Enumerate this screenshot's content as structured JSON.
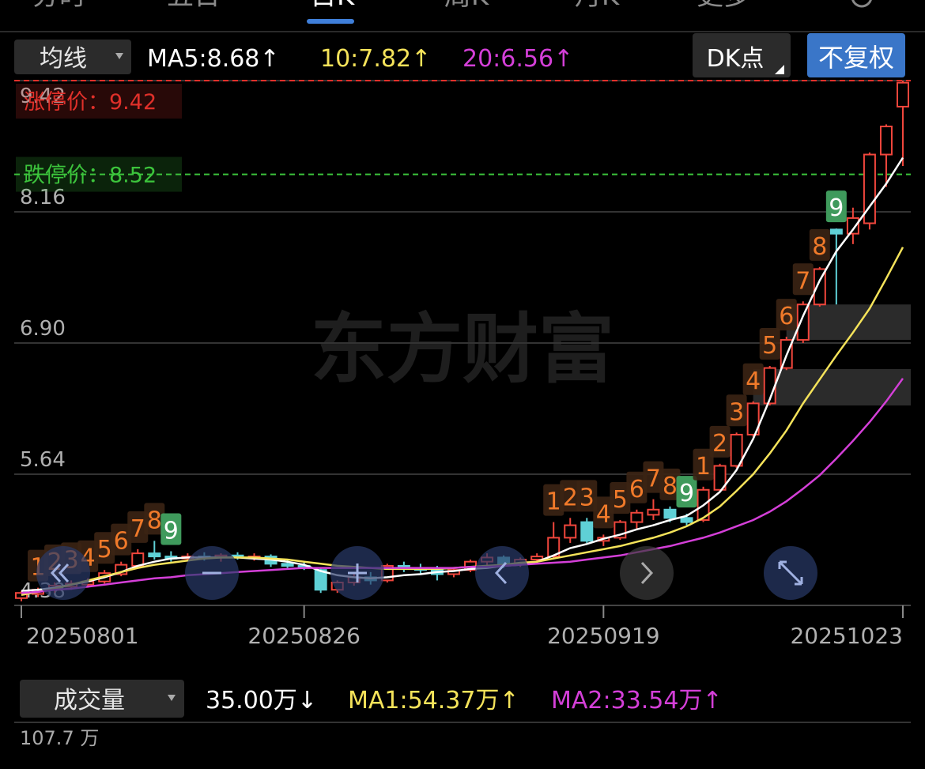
{
  "tabs": [
    "分时",
    "五日",
    "日K",
    "周K",
    "月K",
    "更多"
  ],
  "toolbar": {
    "ma_selector": "均线",
    "dk_button": "DK点",
    "adjust_button": "不复权"
  },
  "chart_data": {
    "type": "candlestick",
    "watermark": "东方财富",
    "categories": [
      "20250801",
      null,
      null,
      null,
      null,
      null,
      null,
      null,
      null,
      null,
      null,
      null,
      null,
      null,
      null,
      null,
      null,
      "20250826",
      null,
      null,
      null,
      null,
      null,
      null,
      null,
      null,
      null,
      null,
      null,
      null,
      null,
      null,
      null,
      null,
      null,
      "20250919",
      null,
      null,
      null,
      null,
      null,
      null,
      null,
      null,
      null,
      null,
      null,
      null,
      null,
      null,
      null,
      null,
      null,
      "20251023"
    ],
    "open": [
      4.45,
      4.49,
      4.53,
      4.56,
      4.58,
      4.61,
      4.68,
      4.76,
      4.88,
      4.85,
      4.83,
      4.85,
      4.84,
      4.86,
      4.84,
      4.85,
      4.78,
      4.76,
      4.72,
      4.53,
      4.6,
      4.65,
      4.62,
      4.76,
      4.74,
      4.72,
      4.68,
      4.72,
      4.8,
      4.84,
      4.78,
      4.82,
      4.85,
      5.03,
      5.18,
      5.0,
      5.03,
      5.18,
      5.25,
      5.3,
      5.22,
      5.2,
      5.49,
      5.72,
      6.02,
      6.32,
      6.66,
      6.93,
      7.27,
      7.99,
      7.95,
      8.05,
      8.71,
      9.17
    ],
    "high": [
      4.52,
      4.55,
      4.6,
      4.62,
      4.64,
      4.72,
      4.8,
      4.92,
      5.0,
      4.9,
      4.88,
      4.89,
      4.88,
      4.89,
      4.88,
      4.87,
      4.82,
      4.8,
      4.74,
      4.62,
      4.68,
      4.7,
      4.78,
      4.8,
      4.78,
      4.76,
      4.74,
      4.82,
      4.88,
      4.86,
      4.84,
      4.88,
      5.18,
      5.22,
      5.22,
      5.06,
      5.2,
      5.3,
      5.4,
      5.33,
      5.26,
      5.52,
      5.74,
      6.04,
      6.34,
      6.68,
      6.96,
      7.3,
      7.63,
      8.0,
      8.2,
      8.73,
      9.0,
      9.42
    ],
    "low": [
      4.42,
      4.46,
      4.5,
      4.53,
      4.55,
      4.59,
      4.66,
      4.74,
      4.82,
      4.8,
      4.8,
      4.81,
      4.8,
      4.82,
      4.81,
      4.75,
      4.74,
      4.72,
      4.5,
      4.5,
      4.57,
      4.58,
      4.6,
      4.7,
      4.68,
      4.62,
      4.65,
      4.7,
      4.76,
      4.74,
      4.75,
      4.79,
      4.83,
      4.98,
      4.98,
      4.95,
      5.01,
      5.12,
      5.2,
      5.18,
      5.15,
      5.18,
      5.47,
      5.7,
      6.0,
      6.3,
      6.64,
      6.9,
      7.25,
      7.27,
      7.85,
      7.99,
      8.4,
      8.6
    ],
    "close": [
      4.5,
      4.53,
      4.57,
      4.59,
      4.61,
      4.69,
      4.77,
      4.88,
      4.85,
      4.83,
      4.85,
      4.84,
      4.86,
      4.84,
      4.85,
      4.78,
      4.76,
      4.74,
      4.53,
      4.6,
      4.65,
      4.62,
      4.76,
      4.74,
      4.72,
      4.68,
      4.72,
      4.8,
      4.84,
      4.78,
      4.82,
      4.85,
      5.03,
      5.15,
      5.0,
      5.03,
      5.18,
      5.27,
      5.3,
      5.22,
      5.18,
      5.49,
      5.72,
      6.02,
      6.32,
      6.66,
      6.93,
      7.27,
      7.61,
      7.95,
      8.1,
      8.71,
      8.98,
      9.4
    ],
    "up_color": "#f0463c",
    "down_color": "#5fd0d6",
    "series": [
      {
        "name": "MA5:8.68↑",
        "color": "#ffffff",
        "values": [
          4.52,
          4.53,
          4.55,
          4.58,
          4.61,
          4.65,
          4.7,
          4.76,
          4.8,
          4.83,
          4.84,
          4.84,
          4.84,
          4.84,
          4.83,
          4.82,
          4.8,
          4.77,
          4.71,
          4.67,
          4.65,
          4.64,
          4.65,
          4.67,
          4.68,
          4.7,
          4.71,
          4.73,
          4.74,
          4.76,
          4.77,
          4.8,
          4.86,
          4.93,
          4.97,
          5.02,
          5.06,
          5.11,
          5.15,
          5.2,
          5.24,
          5.34,
          5.47,
          5.68,
          5.98,
          6.36,
          6.78,
          7.16,
          7.5,
          7.78,
          7.99,
          8.21,
          8.43,
          8.68
        ]
      },
      {
        "name": "10:7.82↑",
        "color": "#f5e35a",
        "values": [
          4.48,
          4.51,
          4.54,
          4.58,
          4.62,
          4.66,
          4.7,
          4.74,
          4.77,
          4.79,
          4.81,
          4.83,
          4.84,
          4.84,
          4.84,
          4.83,
          4.82,
          4.8,
          4.78,
          4.76,
          4.75,
          4.74,
          4.73,
          4.73,
          4.73,
          4.73,
          4.74,
          4.75,
          4.76,
          4.77,
          4.79,
          4.8,
          4.83,
          4.86,
          4.89,
          4.92,
          4.95,
          4.99,
          5.03,
          5.08,
          5.14,
          5.22,
          5.33,
          5.48,
          5.64,
          5.84,
          6.06,
          6.32,
          6.55,
          6.78,
          7.0,
          7.23,
          7.52,
          7.82
        ]
      },
      {
        "name": "20:6.56↑",
        "color": "#d43fd8",
        "values": [
          4.5,
          4.51,
          4.53,
          4.54,
          4.56,
          4.58,
          4.6,
          4.62,
          4.64,
          4.65,
          4.67,
          4.68,
          4.69,
          4.7,
          4.71,
          4.72,
          4.73,
          4.74,
          4.74,
          4.74,
          4.74,
          4.74,
          4.74,
          4.74,
          4.74,
          4.74,
          4.74,
          4.75,
          4.75,
          4.76,
          4.77,
          4.78,
          4.79,
          4.8,
          4.82,
          4.84,
          4.86,
          4.89,
          4.92,
          4.95,
          4.99,
          5.03,
          5.08,
          5.14,
          5.2,
          5.28,
          5.38,
          5.5,
          5.63,
          5.79,
          5.96,
          6.14,
          6.34,
          6.56
        ]
      }
    ],
    "ylim": [
      4.38,
      9.42
    ],
    "yticks": [
      9.42,
      8.16,
      {
        "value": 6.9,
        "label": "6.90"
      },
      5.64,
      4.38
    ],
    "grid": true,
    "limit_up": {
      "label": "涨停价：",
      "value": 9.42,
      "color": "#e0302a"
    },
    "limit_down": {
      "label": "跌停价：",
      "value": 8.52,
      "color": "#3cc43c"
    },
    "gaps": [
      {
        "start": 46,
        "low": 6.93,
        "high": 7.27
      },
      {
        "start": 44,
        "low": 6.3,
        "high": 6.65
      }
    ],
    "sequence_marks": [
      {
        "at": 1,
        "text": "1"
      },
      {
        "at": 2,
        "text": "2"
      },
      {
        "at": 3,
        "text": "3"
      },
      {
        "at": 4,
        "text": "4"
      },
      {
        "at": 5,
        "text": "5"
      },
      {
        "at": 6,
        "text": "6"
      },
      {
        "at": 7,
        "text": "7"
      },
      {
        "at": 8,
        "text": "8"
      },
      {
        "at": 9,
        "text": "9"
      },
      {
        "at": 32,
        "text": "1"
      },
      {
        "at": 33,
        "text": "2"
      },
      {
        "at": 34,
        "text": "3"
      },
      {
        "at": 35,
        "text": "4"
      },
      {
        "at": 36,
        "text": "5"
      },
      {
        "at": 37,
        "text": "6"
      },
      {
        "at": 38,
        "text": "7"
      },
      {
        "at": 39,
        "text": "8"
      },
      {
        "at": 40,
        "text": "9"
      },
      {
        "at": 41,
        "text": "1"
      },
      {
        "at": 42,
        "text": "2"
      },
      {
        "at": 43,
        "text": "3"
      },
      {
        "at": 44,
        "text": "4"
      },
      {
        "at": 45,
        "text": "5"
      },
      {
        "at": 46,
        "text": "6"
      },
      {
        "at": 47,
        "text": "7"
      },
      {
        "at": 48,
        "text": "8"
      },
      {
        "at": 49,
        "text": "9"
      }
    ]
  },
  "volume_panel": {
    "selector": "成交量",
    "current": "35.00万↓",
    "ma1": "MA1:54.37万↑",
    "ma2": "MA2:33.54万↑",
    "axis_top": "107.7 万"
  }
}
